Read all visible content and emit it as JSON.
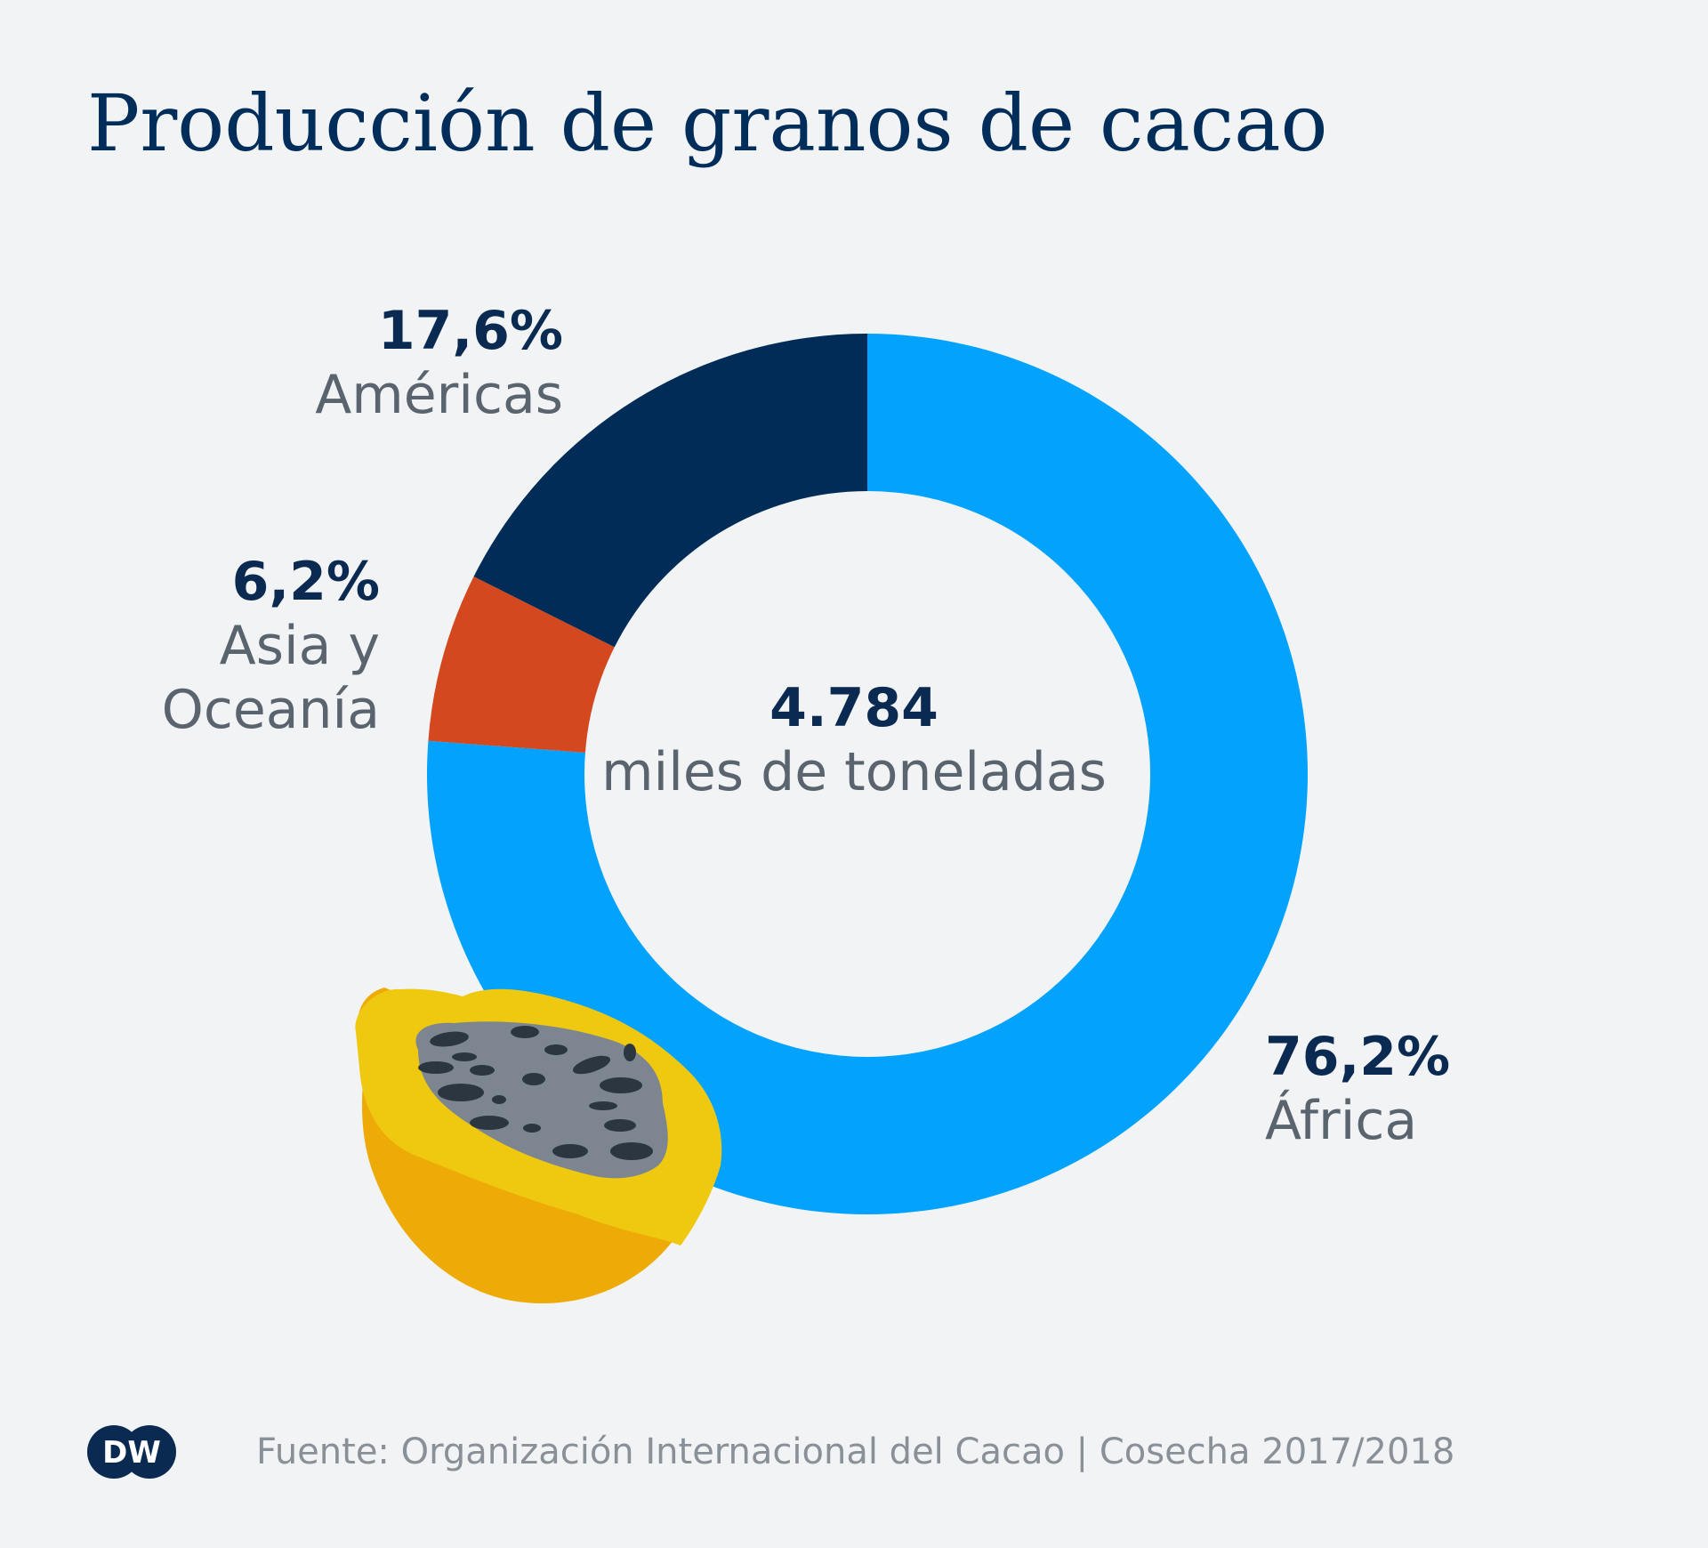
{
  "chart_data": {
    "type": "pie",
    "title": "Producción de granos de cacao",
    "center_value": "4.784",
    "center_unit": "miles de toneladas",
    "slices": [
      {
        "label": "África",
        "value": 76.2,
        "value_label": "76,2%",
        "color": "#03a3fd"
      },
      {
        "label": "Asia y Oceanía",
        "label_lines": [
          "Asia y",
          "Oceanía"
        ],
        "value": 6.2,
        "value_label": "6,2%",
        "color": "#d44820"
      },
      {
        "label": "Américas",
        "value": 17.6,
        "value_label": "17,6%",
        "color": "#012c57"
      }
    ],
    "start": "12 o'clock",
    "direction": "clockwise"
  },
  "footer": {
    "logo_text": "DW",
    "source": "Fuente: Organización Internacional del Cacao | Cosecha 2017/2018"
  }
}
